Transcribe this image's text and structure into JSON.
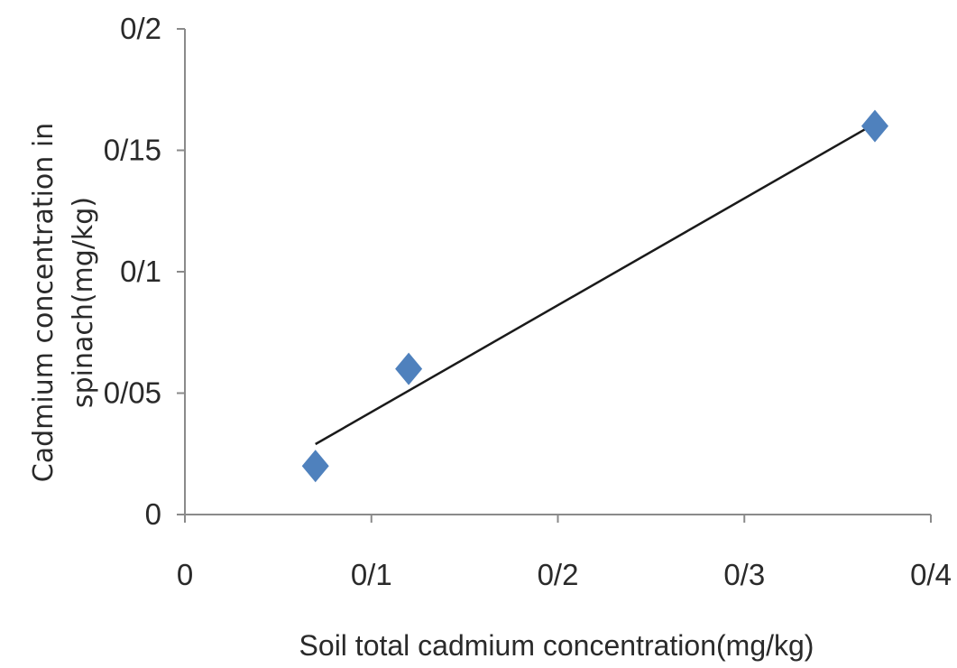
{
  "chart_data": {
    "type": "scatter",
    "xlabel": "Soil total cadmium concentration(mg/kg)",
    "ylabel_lines": [
      "Cadmium concentration in",
      "spinach(mg/kg)"
    ],
    "xlim": [
      0,
      0.4
    ],
    "ylim": [
      0,
      0.2
    ],
    "x_ticks": [
      {
        "value": 0,
        "label": "0"
      },
      {
        "value": 0.1,
        "label": "0/1"
      },
      {
        "value": 0.2,
        "label": "0/2"
      },
      {
        "value": 0.3,
        "label": "0/3"
      },
      {
        "value": 0.4,
        "label": "0/4"
      }
    ],
    "y_ticks": [
      {
        "value": 0,
        "label": "0"
      },
      {
        "value": 0.05,
        "label": "0/05"
      },
      {
        "value": 0.1,
        "label": "0/1"
      },
      {
        "value": 0.15,
        "label": "0/15"
      },
      {
        "value": 0.2,
        "label": "0/2"
      }
    ],
    "series": [
      {
        "marker": "diamond",
        "color": "#4f81bd",
        "x": [
          0.07,
          0.12,
          0.37
        ],
        "y": [
          0.02,
          0.06,
          0.16
        ]
      }
    ],
    "trendline": {
      "color": "#1a1a1a",
      "x": [
        0.07,
        0.37
      ],
      "y": [
        0.029,
        0.161
      ]
    },
    "grid": false,
    "legend": "none"
  }
}
